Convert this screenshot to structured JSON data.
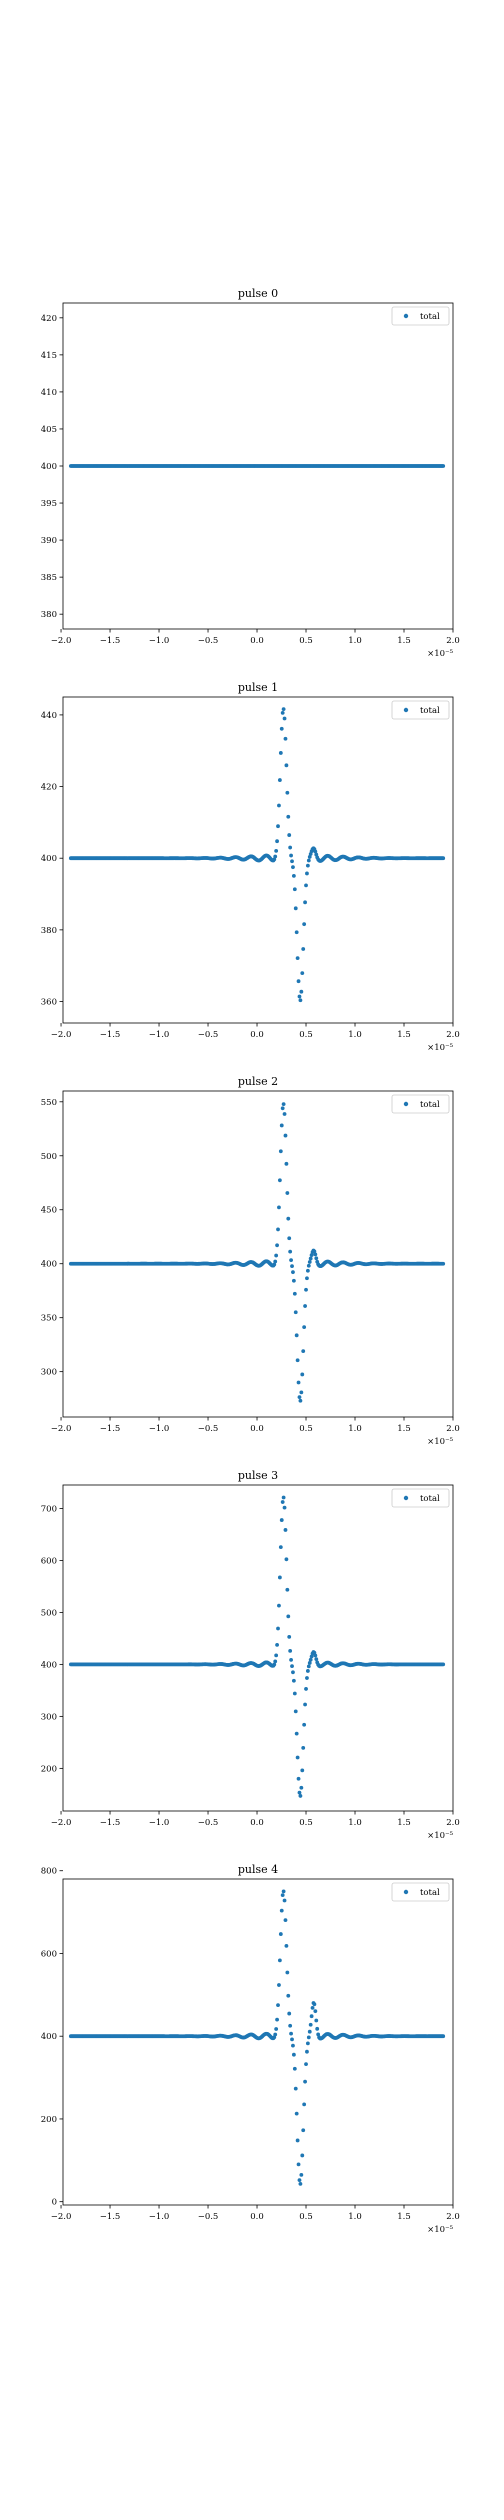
{
  "figure": {
    "background": "#ffffff"
  },
  "style": {
    "point_color": "#1f77b4",
    "frame_color": "#000000"
  },
  "chart_data": [
    {
      "type": "scatter",
      "title": "pulse 0",
      "xlim": [
        -1.98,
        2.0
      ],
      "ylim": [
        378,
        422
      ],
      "xticks": [
        -2.0,
        -1.5,
        -1.0,
        -0.5,
        0.0,
        0.5,
        1.0,
        1.5,
        2.0
      ],
      "xtick_labels": [
        "−2.0",
        "−1.5",
        "−1.0",
        "−0.5",
        "0.0",
        "0.5",
        "1.0",
        "1.5",
        "2.0"
      ],
      "yticks": [
        380,
        385,
        390,
        395,
        400,
        405,
        410,
        415,
        420
      ],
      "ytick_labels": [
        "380",
        "385",
        "390",
        "395",
        "400",
        "405",
        "410",
        "415",
        "420"
      ],
      "x_offset_label": "×10⁻⁵",
      "series": [
        {
          "name": "total",
          "signal": {
            "baseline": 400,
            "peak": 0,
            "ripple": 0,
            "rebound": 0,
            "dip": 0
          }
        }
      ],
      "legend": {
        "position": "top-right"
      }
    },
    {
      "type": "scatter",
      "title": "pulse 1",
      "xlim": [
        -1.98,
        2.0
      ],
      "ylim": [
        354,
        445
      ],
      "xticks": [
        -2.0,
        -1.5,
        -1.0,
        -0.5,
        0.0,
        0.5,
        1.0,
        1.5,
        2.0
      ],
      "xtick_labels": [
        "−2.0",
        "−1.5",
        "−1.0",
        "−0.5",
        "0.0",
        "0.5",
        "1.0",
        "1.5",
        "2.0"
      ],
      "yticks": [
        360,
        380,
        400,
        420,
        440
      ],
      "ytick_labels": [
        "360",
        "380",
        "400",
        "420",
        "440"
      ],
      "x_offset_label": "×10⁻⁵",
      "series": [
        {
          "name": "total",
          "signal": {
            "baseline": 400,
            "peak": 41,
            "ripple": 1.0,
            "rebound": 2,
            "dip": -40
          }
        }
      ],
      "legend": {
        "position": "top-right"
      }
    },
    {
      "type": "scatter",
      "title": "pulse 2",
      "xlim": [
        -1.98,
        2.0
      ],
      "ylim": [
        258,
        560
      ],
      "xticks": [
        -2.0,
        -1.5,
        -1.0,
        -0.5,
        0.0,
        0.5,
        1.0,
        1.5,
        2.0
      ],
      "xtick_labels": [
        "−2.0",
        "−1.5",
        "−1.0",
        "−0.5",
        "0.0",
        "0.5",
        "1.0",
        "1.5",
        "2.0"
      ],
      "yticks": [
        300,
        350,
        400,
        450,
        500,
        550
      ],
      "ytick_labels": [
        "300",
        "350",
        "400",
        "450",
        "500",
        "550"
      ],
      "x_offset_label": "×10⁻⁵",
      "series": [
        {
          "name": "total",
          "signal": {
            "baseline": 400,
            "peak": 146,
            "ripple": 3.0,
            "rebound": 10,
            "dip": -128
          }
        }
      ],
      "legend": {
        "position": "top-right"
      }
    },
    {
      "type": "scatter",
      "title": "pulse 3",
      "xlim": [
        -1.98,
        2.0
      ],
      "ylim": [
        118,
        745
      ],
      "xticks": [
        -2.0,
        -1.5,
        -1.0,
        -0.5,
        0.0,
        0.5,
        1.0,
        1.5,
        2.0
      ],
      "xtick_labels": [
        "−2.0",
        "−1.5",
        "−1.0",
        "−0.5",
        "0.0",
        "0.5",
        "1.0",
        "1.5",
        "2.0"
      ],
      "yticks": [
        200,
        300,
        400,
        500,
        600,
        700
      ],
      "ytick_labels": [
        "200",
        "300",
        "400",
        "500",
        "600",
        "700"
      ],
      "x_offset_label": "×10⁻⁵",
      "series": [
        {
          "name": "total",
          "signal": {
            "baseline": 400,
            "peak": 318,
            "ripple": 5.0,
            "rebound": 20,
            "dip": -255
          }
        }
      ],
      "legend": {
        "position": "top-right"
      }
    },
    {
      "type": "scatter",
      "title": "pulse 4",
      "xlim": [
        -1.98,
        2.0
      ],
      "ylim": [
        -8,
        780
      ],
      "xticks": [
        -2.0,
        -1.5,
        -1.0,
        -0.5,
        0.0,
        0.5,
        1.0,
        1.5,
        2.0
      ],
      "xtick_labels": [
        "−2.0",
        "−1.5",
        "−1.0",
        "−0.5",
        "0.0",
        "0.5",
        "1.0",
        "1.5",
        "2.0"
      ],
      "yticks": [
        0,
        200,
        400,
        600,
        800
      ],
      "ytick_labels": [
        "0",
        "200",
        "400",
        "600",
        "800"
      ],
      "x_offset_label": "×10⁻⁵",
      "series": [
        {
          "name": "total",
          "signal": {
            "baseline": 400,
            "peak": 345,
            "ripple": 8.0,
            "rebound": 75,
            "dip": -360
          }
        }
      ],
      "legend": {
        "position": "top-right"
      }
    }
  ]
}
